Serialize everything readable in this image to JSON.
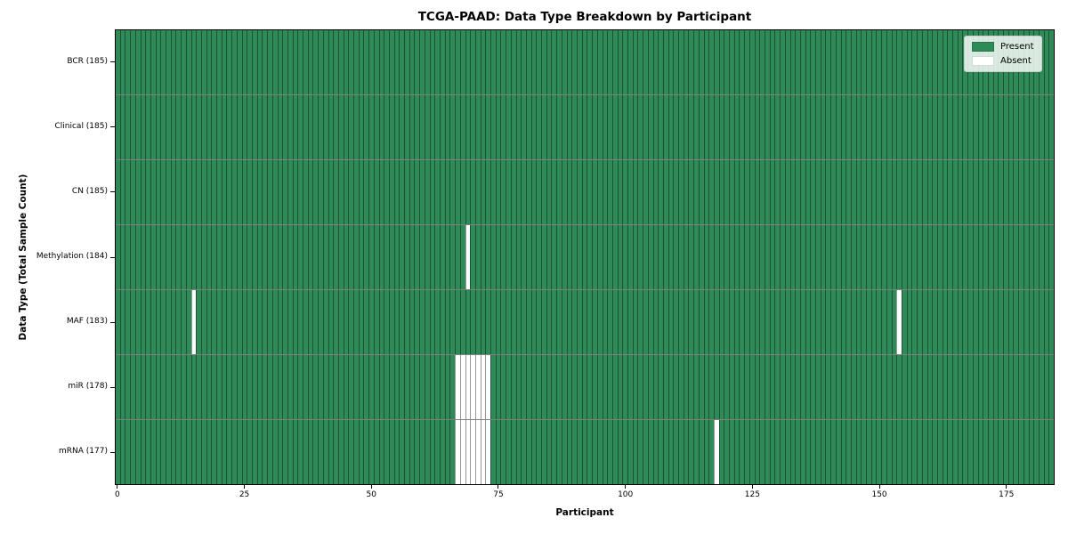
{
  "chart_data": {
    "type": "heatmap",
    "title": "TCGA-PAAD: Data Type Breakdown by Participant",
    "xlabel": "Participant",
    "ylabel": "Data Type (Total Sample Count)",
    "n_participants": 185,
    "xlim": [
      -0.5,
      184.5
    ],
    "x_ticks": [
      0,
      25,
      50,
      75,
      100,
      125,
      150,
      175
    ],
    "grid": false,
    "legend_position": "upper right",
    "colors": {
      "present": "#2e8b57",
      "absent": "#ffffff"
    },
    "legend_items": [
      {
        "label": "Present",
        "color": "#2e8b57"
      },
      {
        "label": "Absent",
        "color": "#ffffff"
      }
    ],
    "rows": [
      {
        "name": "BCR",
        "label": "BCR (185)",
        "total_samples": 185,
        "absent_participants": []
      },
      {
        "name": "Clinical",
        "label": "Clinical (185)",
        "total_samples": 185,
        "absent_participants": []
      },
      {
        "name": "CN",
        "label": "CN (185)",
        "total_samples": 185,
        "absent_participants": []
      },
      {
        "name": "Methylation",
        "label": "Methylation (184)",
        "total_samples": 184,
        "absent_participants": [
          69
        ]
      },
      {
        "name": "MAF",
        "label": "MAF (183)",
        "total_samples": 183,
        "absent_participants": [
          15,
          154
        ]
      },
      {
        "name": "miR",
        "label": "miR (178)",
        "total_samples": 178,
        "absent_participants": [
          67,
          68,
          69,
          70,
          71,
          72,
          73
        ]
      },
      {
        "name": "mRNA",
        "label": "mRNA (177)",
        "total_samples": 177,
        "absent_participants": [
          67,
          68,
          69,
          70,
          71,
          72,
          73,
          118
        ]
      }
    ]
  }
}
